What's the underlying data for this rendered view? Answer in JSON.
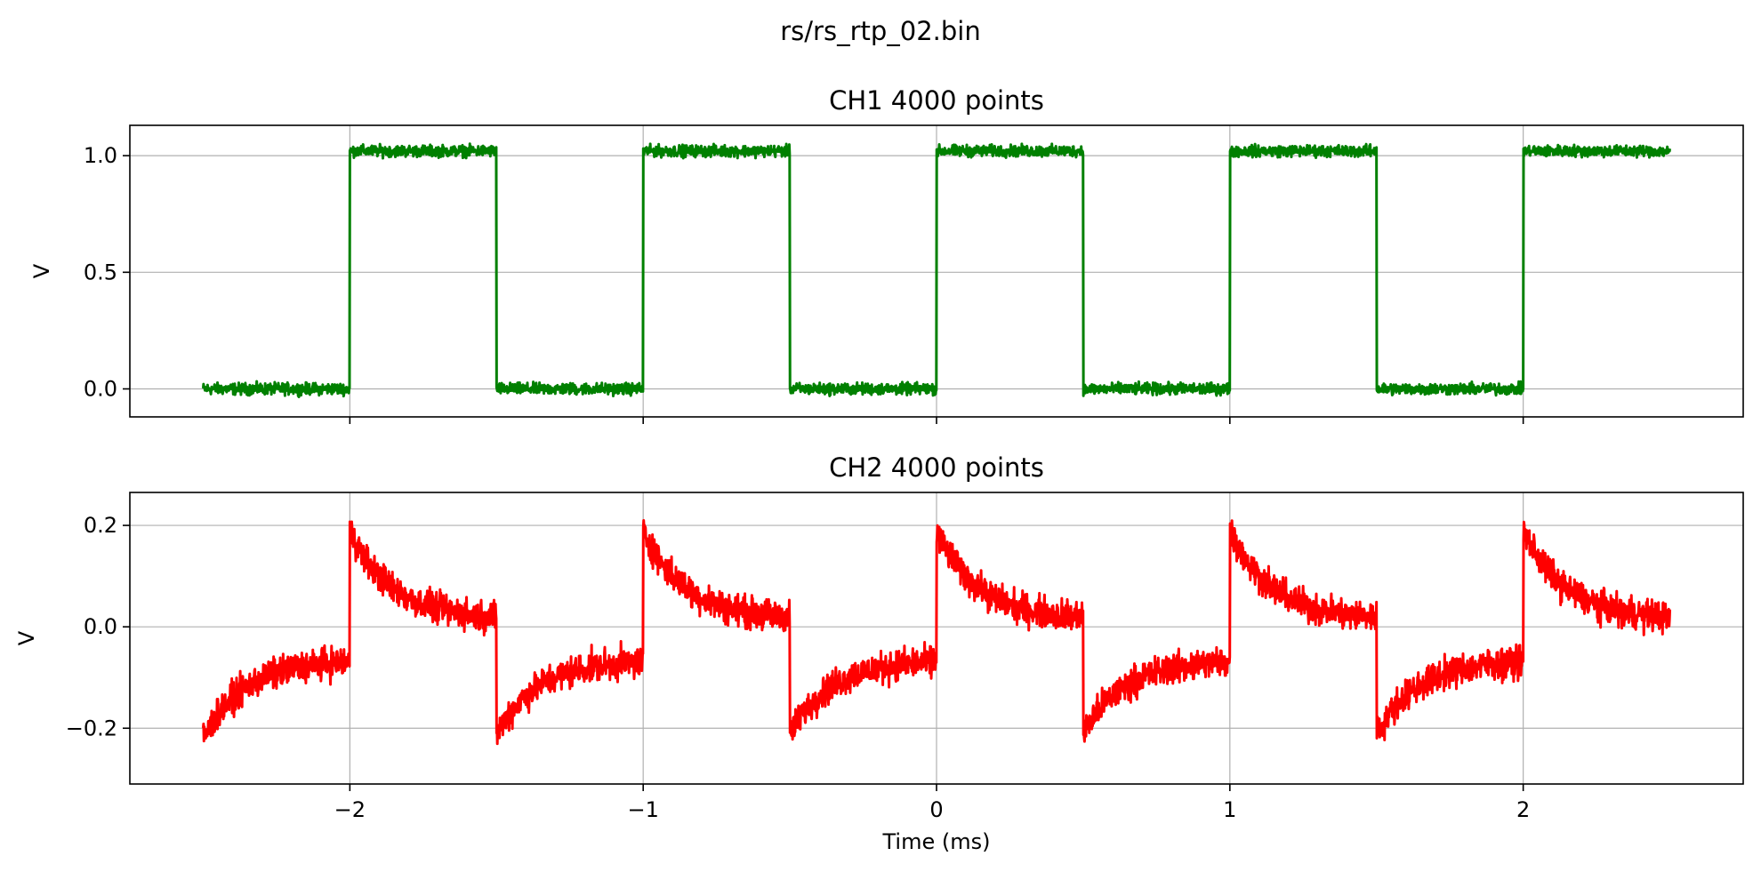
{
  "figure": {
    "suptitle": "rs/rs_rtp_02.bin"
  },
  "chart_data": [
    {
      "type": "line",
      "title": "CH1  4000 points",
      "xlabel": "",
      "ylabel": "V",
      "xlim": [
        -2.75,
        2.75
      ],
      "ylim": [
        -0.12,
        1.13
      ],
      "xticks": [
        -2,
        -1,
        0,
        1,
        2
      ],
      "xtick_labels": [
        "",
        "",
        "",
        "",
        ""
      ],
      "yticks": [
        0.0,
        0.5,
        1.0
      ],
      "ytick_labels": [
        "0.0",
        "0.5",
        "1.0"
      ],
      "grid": true,
      "series": [
        {
          "color": "#008000",
          "points": 4000,
          "x_range": [
            -2.5,
            2.5
          ],
          "shape": "square_wave",
          "low": 0.0,
          "high": 1.02,
          "noise_amplitude": 0.02,
          "transitions": [
            {
              "x": -2.0,
              "to": "high"
            },
            {
              "x": -1.5,
              "to": "low"
            },
            {
              "x": -1.0,
              "to": "high"
            },
            {
              "x": -0.5,
              "to": "low"
            },
            {
              "x": 0.0,
              "to": "high"
            },
            {
              "x": 0.5,
              "to": "low"
            },
            {
              "x": 1.0,
              "to": "high"
            },
            {
              "x": 1.5,
              "to": "low"
            },
            {
              "x": 2.0,
              "to": "high"
            }
          ]
        }
      ]
    },
    {
      "type": "line",
      "title": "CH2  4000 points",
      "xlabel": "Time (ms)",
      "ylabel": "V",
      "xlim": [
        -2.75,
        2.75
      ],
      "ylim": [
        -0.31,
        0.265
      ],
      "xticks": [
        -2,
        -1,
        0,
        1,
        2
      ],
      "xtick_labels": [
        "−2",
        "−1",
        "0",
        "1",
        "2"
      ],
      "yticks": [
        -0.2,
        0.0,
        0.2
      ],
      "ytick_labels": [
        "−0.2",
        "0.0",
        "0.2"
      ],
      "grid": true,
      "series": [
        {
          "color": "#ff0000",
          "points": 4000,
          "x_range": [
            -2.5,
            2.5
          ],
          "shape": "ac_coupled_square_wave",
          "rising_edges": [
            -2.0,
            -1.0,
            0.0,
            1.0,
            2.0
          ],
          "falling_edges": [
            -1.5,
            -0.5,
            0.5,
            1.5
          ],
          "after_rise": {
            "peak": 0.19,
            "settle": 0.015
          },
          "after_fall": {
            "peak": -0.21,
            "settle": -0.065
          },
          "start_value": -0.22,
          "noise_amplitude": 0.025
        }
      ]
    }
  ]
}
